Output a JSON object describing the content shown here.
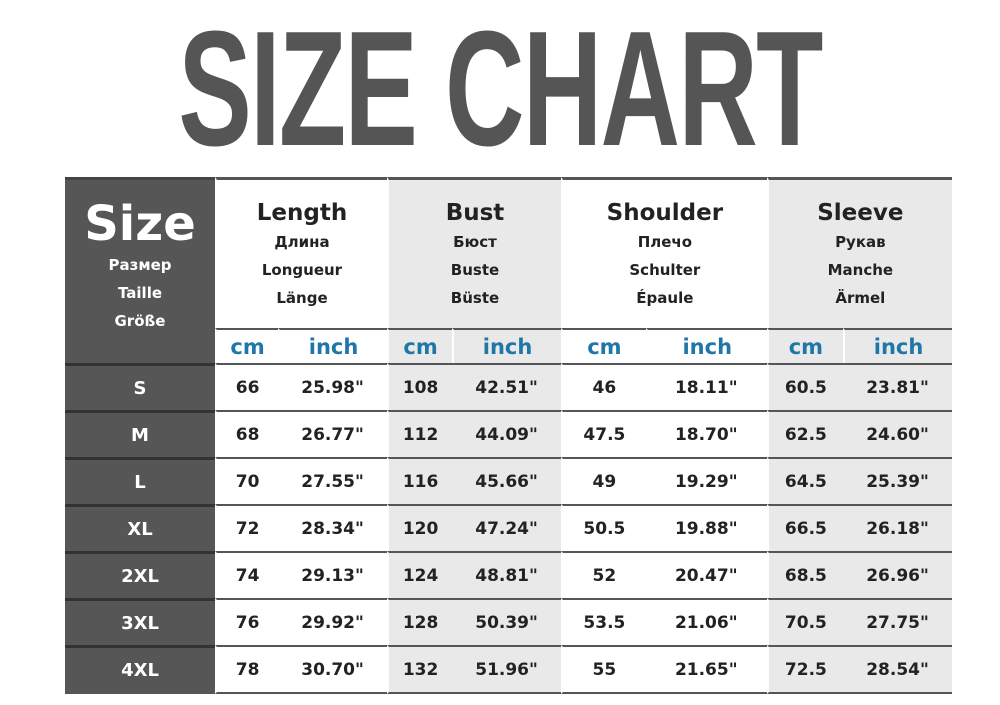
{
  "title": "SIZE CHART",
  "size_header": {
    "label": "Size",
    "translations": [
      "Размер",
      "Taille",
      "Größe"
    ]
  },
  "groups": [
    {
      "label": "Length",
      "translations": [
        "Длина",
        "Longueur",
        "Länge"
      ]
    },
    {
      "label": "Bust",
      "translations": [
        "Бюст",
        "Buste",
        "Büste"
      ]
    },
    {
      "label": "Shoulder",
      "translations": [
        "Плечо",
        "Schulter",
        "Épaule"
      ]
    },
    {
      "label": "Sleeve",
      "translations": [
        "Рукав",
        "Manche",
        "Ärmel"
      ]
    }
  ],
  "units": [
    "cm",
    "inch"
  ],
  "rows": [
    {
      "size": "S",
      "values": [
        "66",
        "25.98\"",
        "108",
        "42.51\"",
        "46",
        "18.11\"",
        "60.5",
        "23.81\""
      ]
    },
    {
      "size": "M",
      "values": [
        "68",
        "26.77\"",
        "112",
        "44.09\"",
        "47.5",
        "18.70\"",
        "62.5",
        "24.60\""
      ]
    },
    {
      "size": "L",
      "values": [
        "70",
        "27.55\"",
        "116",
        "45.66\"",
        "49",
        "19.29\"",
        "64.5",
        "25.39\""
      ]
    },
    {
      "size": "XL",
      "values": [
        "72",
        "28.34\"",
        "120",
        "47.24\"",
        "50.5",
        "19.88\"",
        "66.5",
        "26.18\""
      ]
    },
    {
      "size": "2XL",
      "values": [
        "74",
        "29.13\"",
        "124",
        "48.81\"",
        "52",
        "20.47\"",
        "68.5",
        "26.96\""
      ]
    },
    {
      "size": "3XL",
      "values": [
        "76",
        "29.92\"",
        "128",
        "50.39\"",
        "53.5",
        "21.06\"",
        "70.5",
        "27.75\""
      ]
    },
    {
      "size": "4XL",
      "values": [
        "78",
        "30.70\"",
        "132",
        "51.96\"",
        "55",
        "21.65\"",
        "72.5",
        "28.54\""
      ]
    }
  ],
  "colors": {
    "title": "#555555",
    "size_column": "#565656",
    "unit_text": "#1f77a8",
    "shaded_group": "#e9e9e9"
  }
}
